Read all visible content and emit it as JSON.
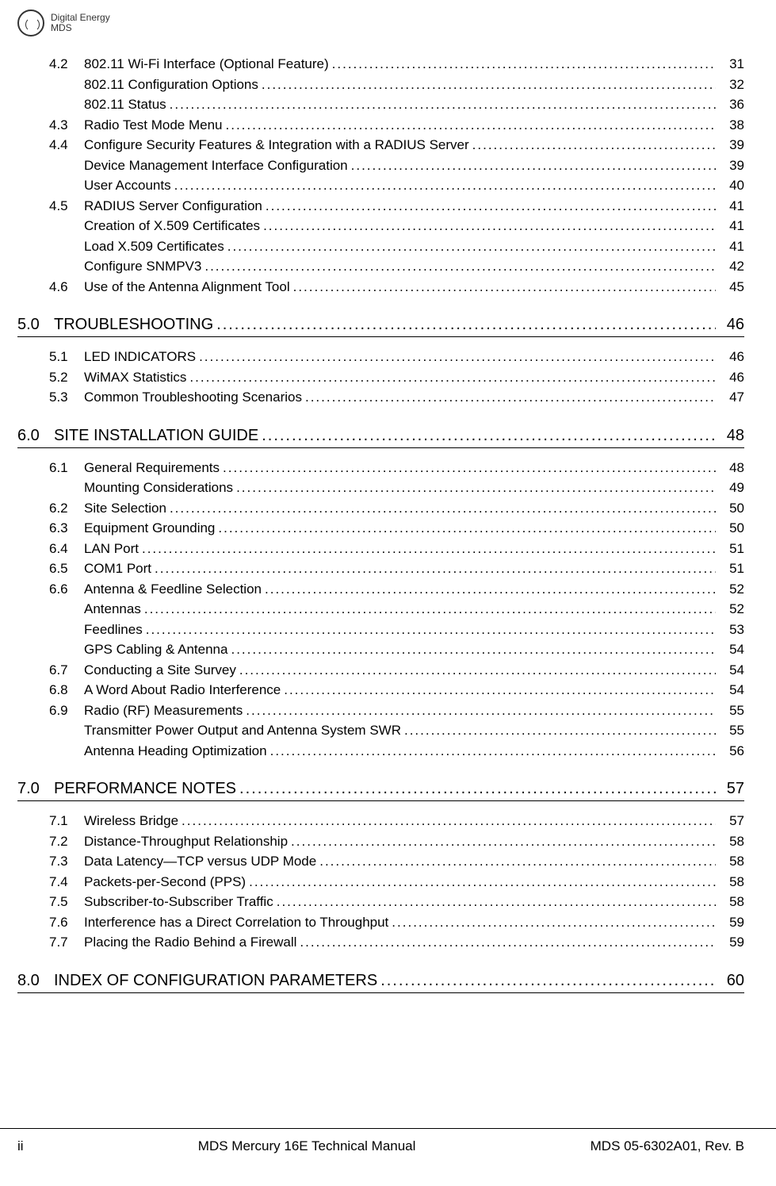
{
  "logo": {
    "line1": "Digital Energy",
    "line2": "MDS"
  },
  "leader_dots": "......................................................................................................................................................................",
  "toc": [
    {
      "level": 2,
      "num": "4.2",
      "title": "802.11 Wi-Fi Interface (Optional Feature)",
      "page": "31"
    },
    {
      "level": 3,
      "title": "802.11 Configuration Options",
      "page": "32"
    },
    {
      "level": 3,
      "title": "802.11 Status",
      "page": "36"
    },
    {
      "level": 2,
      "num": "4.3",
      "title": "Radio Test Mode Menu",
      "page": "38"
    },
    {
      "level": 2,
      "num": "4.4",
      "title": "Configure Security Features & Integration with a RADIUS Server",
      "page": "39"
    },
    {
      "level": 3,
      "title": "Device Management Interface Configuration",
      "page": "39"
    },
    {
      "level": 3,
      "title": "User Accounts",
      "page": "40"
    },
    {
      "level": 2,
      "num": "4.5",
      "title": "RADIUS Server Configuration",
      "page": "41"
    },
    {
      "level": 3,
      "title": "Creation of X.509 Certificates",
      "page": "41"
    },
    {
      "level": 3,
      "title": "Load X.509 Certificates",
      "page": "41"
    },
    {
      "level": 3,
      "title": "Configure SNMPV3",
      "page": "42"
    },
    {
      "level": 2,
      "num": "4.6",
      "title": "Use of the Antenna Alignment Tool",
      "page": "45"
    },
    {
      "level": 1,
      "num": "5.0",
      "title": "TROUBLESHOOTING",
      "page": "46"
    },
    {
      "level": 2,
      "num": "5.1",
      "title": "LED INDICATORS",
      "page": "46"
    },
    {
      "level": 2,
      "num": "5.2",
      "title": "WiMAX Statistics",
      "page": "46"
    },
    {
      "level": 2,
      "num": "5.3",
      "title": "Common Troubleshooting Scenarios",
      "page": "47"
    },
    {
      "level": 1,
      "num": "6.0",
      "title": "SITE INSTALLATION GUIDE",
      "page": "48"
    },
    {
      "level": 2,
      "num": "6.1",
      "title": "General Requirements",
      "page": "48"
    },
    {
      "level": 3,
      "title": "Mounting Considerations",
      "page": "49"
    },
    {
      "level": 2,
      "num": "6.2",
      "title": "Site Selection",
      "page": "50"
    },
    {
      "level": 2,
      "num": "6.3",
      "title": "Equipment Grounding",
      "page": "50"
    },
    {
      "level": 2,
      "num": "6.4",
      "title": "LAN Port",
      "page": "51"
    },
    {
      "level": 2,
      "num": "6.5",
      "title": "COM1 Port",
      "page": "51"
    },
    {
      "level": 2,
      "num": "6.6",
      "title": "Antenna & Feedline Selection",
      "page": "52"
    },
    {
      "level": 3,
      "title": "Antennas",
      "page": "52"
    },
    {
      "level": 3,
      "title": "Feedlines",
      "page": "53"
    },
    {
      "level": 3,
      "title": "GPS Cabling & Antenna",
      "page": "54"
    },
    {
      "level": 2,
      "num": "6.7",
      "title": "Conducting a Site Survey",
      "page": "54"
    },
    {
      "level": 2,
      "num": "6.8",
      "title": "A Word About Radio Interference",
      "page": "54"
    },
    {
      "level": 2,
      "num": "6.9",
      "title": "Radio (RF) Measurements",
      "page": "55"
    },
    {
      "level": 3,
      "title": "Transmitter Power Output and Antenna System SWR",
      "page": "55"
    },
    {
      "level": 3,
      "title": "Antenna Heading Optimization",
      "page": "56"
    },
    {
      "level": 1,
      "num": "7.0",
      "title": "PERFORMANCE NOTES",
      "page": "57"
    },
    {
      "level": 2,
      "num": "7.1",
      "title": "Wireless Bridge",
      "page": "57"
    },
    {
      "level": 2,
      "num": "7.2",
      "title": "Distance-Throughput Relationship",
      "page": "58"
    },
    {
      "level": 2,
      "num": "7.3",
      "title": "Data Latency—TCP versus UDP Mode",
      "page": "58"
    },
    {
      "level": 2,
      "num": "7.4",
      "title": "Packets-per-Second (PPS)",
      "page": "58"
    },
    {
      "level": 2,
      "num": "7.5",
      "title": "Subscriber-to-Subscriber Traffic",
      "page": "58"
    },
    {
      "level": 2,
      "num": "7.6",
      "title": "Interference has a Direct Correlation to Throughput",
      "page": "59"
    },
    {
      "level": 2,
      "num": "7.7",
      "title": "Placing the Radio Behind a Firewall",
      "page": "59"
    },
    {
      "level": 1,
      "num": "8.0",
      "title": "INDEX OF CONFIGURATION PARAMETERS",
      "page": "60"
    }
  ],
  "footer": {
    "left": "ii",
    "center": "MDS Mercury 16E Technical Manual",
    "right": "MDS 05-6302A01, Rev.  B"
  }
}
